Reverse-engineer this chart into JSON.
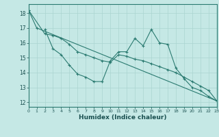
{
  "xlabel": "Humidex (Indice chaleur)",
  "xlim": [
    0,
    23
  ],
  "ylim": [
    11.7,
    18.6
  ],
  "yticks": [
    12,
    13,
    14,
    15,
    16,
    17,
    18
  ],
  "xticks": [
    0,
    1,
    2,
    3,
    4,
    5,
    6,
    7,
    8,
    9,
    10,
    11,
    12,
    13,
    14,
    15,
    16,
    17,
    18,
    19,
    20,
    21,
    22,
    23
  ],
  "background_color": "#c5e8e5",
  "grid_color": "#aad4d0",
  "line_color": "#2a7a70",
  "line1_x": [
    0,
    1,
    23
  ],
  "line1_y": [
    18.2,
    17.0,
    12.1
  ],
  "line2_x": [
    2,
    3,
    4,
    5,
    6,
    7,
    8,
    9,
    10,
    11,
    12,
    13,
    14,
    15,
    16,
    17,
    18,
    19,
    20,
    21,
    22,
    23
  ],
  "line2_y": [
    16.9,
    15.6,
    15.2,
    14.5,
    13.9,
    13.7,
    13.4,
    13.4,
    14.8,
    15.4,
    15.4,
    16.3,
    15.8,
    16.9,
    16.0,
    15.9,
    14.3,
    13.6,
    13.0,
    12.8,
    12.4,
    12.1
  ],
  "line3_x": [
    0,
    2,
    3,
    4,
    5,
    6,
    7,
    8,
    9,
    10,
    11,
    12,
    13,
    14,
    15,
    16,
    17,
    18,
    19,
    20,
    21,
    22,
    23
  ],
  "line3_y": [
    18.2,
    16.6,
    16.5,
    16.3,
    15.9,
    15.4,
    15.2,
    15.0,
    14.8,
    14.7,
    15.2,
    15.1,
    14.9,
    14.8,
    14.6,
    14.4,
    14.2,
    14.0,
    13.7,
    13.4,
    13.1,
    12.8,
    12.1
  ]
}
